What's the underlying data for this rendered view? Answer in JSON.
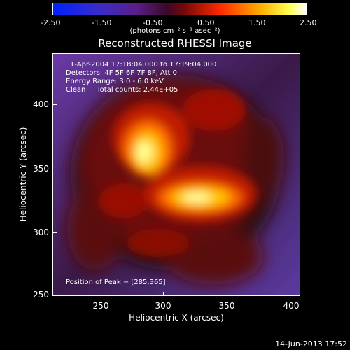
{
  "colorbar": {
    "ticks": [
      "-2.50",
      "-1.50",
      "-0.50",
      "0.50",
      "1.50",
      "2.50"
    ],
    "units": "(photons cm⁻² s⁻¹ asec⁻²)"
  },
  "title": "Reconstructed RHESSI Image",
  "annotations": {
    "time_range": "1-Apr-2004 17:18:04.000 to 17:19:04.000",
    "detectors": "Detectors: 4F 5F 6F 7F 8F, Att 0",
    "energy": "Energy Range: 3.0 - 6.0 keV",
    "method": "Clean     Total counts: 2.44E+05",
    "peak": "Position of Peak = [285,365]"
  },
  "axes": {
    "xlabel": "Heliocentric X (arcsec)",
    "ylabel": "Heliocentric Y (arcsec)",
    "xticks": [
      "250",
      "300",
      "350",
      "400"
    ],
    "yticks": [
      "250",
      "300",
      "350",
      "400"
    ]
  },
  "timestamp": "14-Jun-2013 17:52"
}
